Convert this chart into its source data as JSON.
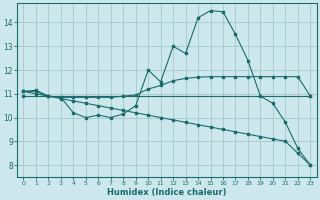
{
  "xlabel": "Humidex (Indice chaleur)",
  "bg_color": "#cde8ec",
  "grid_color": "#aacccc",
  "line_color": "#1a6b6b",
  "xlim": [
    -0.5,
    23.5
  ],
  "ylim": [
    7.5,
    14.8
  ],
  "yticks": [
    8,
    9,
    10,
    11,
    12,
    13,
    14
  ],
  "xticks": [
    0,
    1,
    2,
    3,
    4,
    5,
    6,
    7,
    8,
    9,
    10,
    11,
    12,
    13,
    14,
    15,
    16,
    17,
    18,
    19,
    20,
    21,
    22,
    23
  ],
  "series": [
    {
      "x": [
        0,
        1,
        2,
        3,
        4,
        5,
        6,
        7,
        8,
        9,
        10,
        11,
        12,
        13,
        14,
        15,
        16,
        17,
        18,
        19,
        20,
        21,
        22,
        23
      ],
      "y": [
        11.1,
        11.15,
        10.9,
        10.85,
        10.2,
        10.0,
        10.1,
        10.0,
        10.15,
        10.5,
        12.0,
        11.5,
        13.0,
        12.7,
        14.2,
        14.5,
        14.45,
        13.5,
        12.4,
        10.9,
        10.6,
        9.8,
        8.7,
        8.0
      ]
    },
    {
      "x": [
        0,
        1,
        2,
        3,
        4,
        5,
        6,
        7,
        8,
        9,
        10,
        11,
        12,
        13,
        14,
        15,
        16,
        17,
        18,
        19,
        20,
        21,
        22,
        23
      ],
      "y": [
        11.1,
        11.1,
        10.9,
        10.85,
        10.85,
        10.85,
        10.85,
        10.85,
        10.9,
        10.95,
        11.2,
        11.35,
        11.55,
        11.65,
        11.7,
        11.72,
        11.72,
        11.72,
        11.72,
        11.72,
        11.72,
        11.72,
        11.72,
        10.9
      ]
    },
    {
      "x": [
        0,
        23
      ],
      "y": [
        10.9,
        10.9
      ]
    },
    {
      "x": [
        0,
        1,
        2,
        3,
        4,
        5,
        6,
        7,
        8,
        9,
        10,
        11,
        12,
        13,
        14,
        15,
        16,
        17,
        18,
        19,
        20,
        21,
        22,
        23
      ],
      "y": [
        11.1,
        11.0,
        10.9,
        10.8,
        10.7,
        10.6,
        10.5,
        10.4,
        10.3,
        10.2,
        10.1,
        10.0,
        9.9,
        9.8,
        9.7,
        9.6,
        9.5,
        9.4,
        9.3,
        9.2,
        9.1,
        9.0,
        8.5,
        8.0
      ]
    }
  ]
}
